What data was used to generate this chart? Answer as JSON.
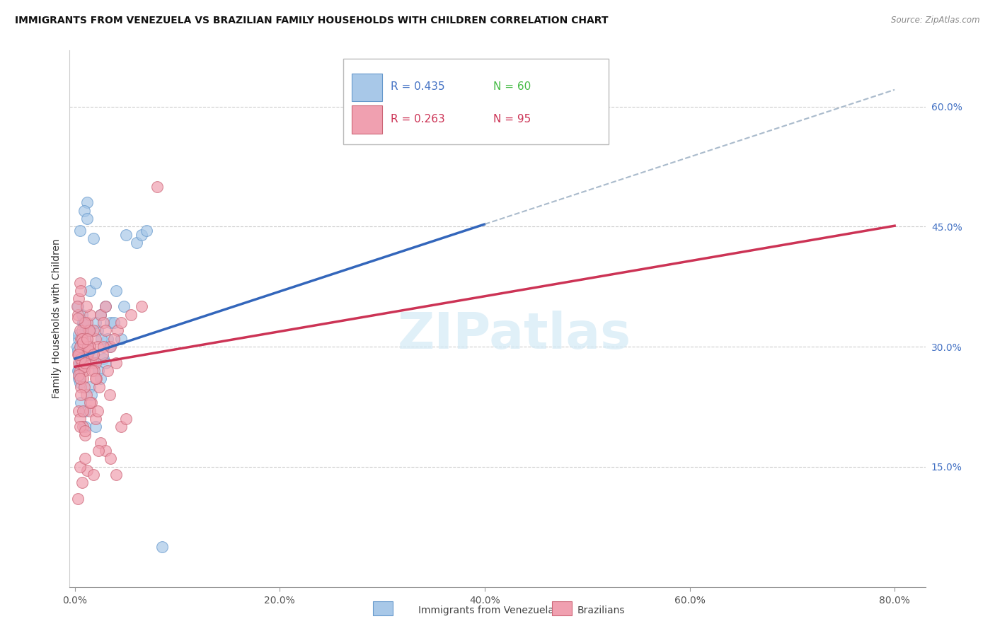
{
  "title": "IMMIGRANTS FROM VENEZUELA VS BRAZILIAN FAMILY HOUSEHOLDS WITH CHILDREN CORRELATION CHART",
  "source": "Source: ZipAtlas.com",
  "ylabel": "Family Households with Children",
  "legend_label1": "Immigrants from Venezuela",
  "legend_label2": "Brazilians",
  "R1": 0.435,
  "N1": 60,
  "R2": 0.263,
  "N2": 95,
  "color_blue_fill": "#a8c8e8",
  "color_blue_edge": "#6699cc",
  "color_blue_line": "#3366bb",
  "color_pink_fill": "#f0a0b0",
  "color_pink_edge": "#cc6677",
  "color_pink_line": "#cc3355",
  "color_dashed_line": "#aabbcc",
  "ylim_min": 0,
  "ylim_max": 67,
  "xlim_min": -0.5,
  "xlim_max": 83,
  "ytick_vals": [
    15,
    30,
    45,
    60
  ],
  "ytick_labels": [
    "15.0%",
    "30.0%",
    "45.0%",
    "60.0%"
  ],
  "xtick_vals": [
    0,
    20,
    40,
    60,
    80
  ],
  "xtick_labels": [
    "0.0%",
    "20.0%",
    "40.0%",
    "60.0%",
    "80.0%"
  ],
  "blue_line_x_start": 0,
  "blue_line_x_solid_end": 40,
  "blue_line_x_dash_end": 80,
  "blue_line_intercept": 28.5,
  "blue_line_slope": 0.42,
  "pink_line_intercept": 27.5,
  "pink_line_slope": 0.22,
  "watermark_text": "ZIPatlas",
  "blue_scatter": [
    [
      0.5,
      29.0
    ],
    [
      1.2,
      48.0
    ],
    [
      0.3,
      35.0
    ],
    [
      0.8,
      33.0
    ],
    [
      1.5,
      37.0
    ],
    [
      2.0,
      38.0
    ],
    [
      0.4,
      27.0
    ],
    [
      0.6,
      28.0
    ],
    [
      1.0,
      32.0
    ],
    [
      0.7,
      31.0
    ],
    [
      0.2,
      30.0
    ],
    [
      0.9,
      33.0
    ],
    [
      1.1,
      29.0
    ],
    [
      0.5,
      28.0
    ],
    [
      0.3,
      27.0
    ],
    [
      2.5,
      34.0
    ],
    [
      1.8,
      43.5
    ],
    [
      3.0,
      35.0
    ],
    [
      4.0,
      37.0
    ],
    [
      5.0,
      44.0
    ],
    [
      6.0,
      43.0
    ],
    [
      0.4,
      31.0
    ],
    [
      0.6,
      30.0
    ],
    [
      1.3,
      32.0
    ],
    [
      0.8,
      29.0
    ],
    [
      2.2,
      32.0
    ],
    [
      3.5,
      33.0
    ],
    [
      1.5,
      25.0
    ],
    [
      2.0,
      20.0
    ],
    [
      1.0,
      22.0
    ],
    [
      2.8,
      28.5
    ],
    [
      3.2,
      31.0
    ],
    [
      1.4,
      32.0
    ],
    [
      3.8,
      33.0
    ],
    [
      4.5,
      31.0
    ],
    [
      1.6,
      24.0
    ],
    [
      2.3,
      27.0
    ],
    [
      0.7,
      34.0
    ],
    [
      0.5,
      44.5
    ],
    [
      0.9,
      47.0
    ],
    [
      1.2,
      46.0
    ],
    [
      6.5,
      44.0
    ],
    [
      7.0,
      44.5
    ],
    [
      0.4,
      26.0
    ],
    [
      0.6,
      23.0
    ],
    [
      1.8,
      28.0
    ],
    [
      2.6,
      31.0
    ],
    [
      3.4,
      30.0
    ],
    [
      4.8,
      35.0
    ],
    [
      8.5,
      5.0
    ],
    [
      0.3,
      29.5
    ],
    [
      1.7,
      29.0
    ],
    [
      0.5,
      25.5
    ],
    [
      1.0,
      20.0
    ],
    [
      0.4,
      31.5
    ],
    [
      1.5,
      32.0
    ],
    [
      2.0,
      33.0
    ],
    [
      2.5,
      26.0
    ],
    [
      3.0,
      28.0
    ],
    [
      1.1,
      30.5
    ]
  ],
  "pink_scatter": [
    [
      0.5,
      38.0
    ],
    [
      0.3,
      34.0
    ],
    [
      0.8,
      30.0
    ],
    [
      0.4,
      36.0
    ],
    [
      1.0,
      31.0
    ],
    [
      0.6,
      29.0
    ],
    [
      0.7,
      32.0
    ],
    [
      0.2,
      35.0
    ],
    [
      1.2,
      33.0
    ],
    [
      0.5,
      27.0
    ],
    [
      0.4,
      28.0
    ],
    [
      0.9,
      30.0
    ],
    [
      0.3,
      29.0
    ],
    [
      1.5,
      34.0
    ],
    [
      0.6,
      31.0
    ],
    [
      0.8,
      26.0
    ],
    [
      1.1,
      35.0
    ],
    [
      0.5,
      30.0
    ],
    [
      0.7,
      28.0
    ],
    [
      1.3,
      29.0
    ],
    [
      2.0,
      31.0
    ],
    [
      1.8,
      32.0
    ],
    [
      2.5,
      34.0
    ],
    [
      3.0,
      35.0
    ],
    [
      2.2,
      30.0
    ],
    [
      1.6,
      28.0
    ],
    [
      0.9,
      27.0
    ],
    [
      1.4,
      32.0
    ],
    [
      2.8,
      33.0
    ],
    [
      3.5,
      30.0
    ],
    [
      0.4,
      22.0
    ],
    [
      0.5,
      21.0
    ],
    [
      0.8,
      20.0
    ],
    [
      1.0,
      19.0
    ],
    [
      0.6,
      25.0
    ],
    [
      1.5,
      22.0
    ],
    [
      2.0,
      21.0
    ],
    [
      2.5,
      18.0
    ],
    [
      3.0,
      17.0
    ],
    [
      1.2,
      14.5
    ],
    [
      0.3,
      11.0
    ],
    [
      3.5,
      16.0
    ],
    [
      4.0,
      14.0
    ],
    [
      4.5,
      20.0
    ],
    [
      5.0,
      21.0
    ],
    [
      0.5,
      15.0
    ],
    [
      1.0,
      16.0
    ],
    [
      0.7,
      13.0
    ],
    [
      1.8,
      14.0
    ],
    [
      2.3,
      17.0
    ],
    [
      0.6,
      37.0
    ],
    [
      1.2,
      29.0
    ],
    [
      1.5,
      30.0
    ],
    [
      0.9,
      27.5
    ],
    [
      0.4,
      26.5
    ],
    [
      2.0,
      28.0
    ],
    [
      1.1,
      24.0
    ],
    [
      0.8,
      22.0
    ],
    [
      1.6,
      23.0
    ],
    [
      2.4,
      25.0
    ],
    [
      0.5,
      32.0
    ],
    [
      3.2,
      27.0
    ],
    [
      0.7,
      31.0
    ],
    [
      1.0,
      33.0
    ],
    [
      1.4,
      29.5
    ],
    [
      2.8,
      30.0
    ],
    [
      0.3,
      33.5
    ],
    [
      0.6,
      28.5
    ],
    [
      1.9,
      27.0
    ],
    [
      2.1,
      26.0
    ],
    [
      4.2,
      32.0
    ],
    [
      6.5,
      35.0
    ],
    [
      8.0,
      50.0
    ],
    [
      0.4,
      29.0
    ],
    [
      0.9,
      25.0
    ],
    [
      1.3,
      30.0
    ],
    [
      2.7,
      29.0
    ],
    [
      3.8,
      31.0
    ],
    [
      4.5,
      33.0
    ],
    [
      5.5,
      34.0
    ],
    [
      0.5,
      26.0
    ],
    [
      1.0,
      28.0
    ],
    [
      1.7,
      27.0
    ],
    [
      2.0,
      26.0
    ],
    [
      3.0,
      32.0
    ],
    [
      0.6,
      24.0
    ],
    [
      1.5,
      23.0
    ],
    [
      2.2,
      22.0
    ],
    [
      3.4,
      24.0
    ],
    [
      4.0,
      28.0
    ],
    [
      0.8,
      30.5
    ],
    [
      1.2,
      31.0
    ],
    [
      1.8,
      29.0
    ],
    [
      0.5,
      20.0
    ],
    [
      1.0,
      19.5
    ]
  ]
}
